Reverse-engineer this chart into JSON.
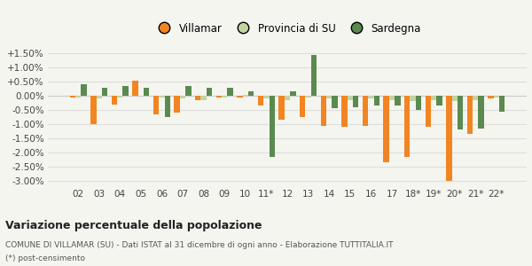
{
  "categories": [
    "02",
    "03",
    "04",
    "05",
    "06",
    "07",
    "08",
    "09",
    "10",
    "11*",
    "12",
    "13",
    "14",
    "15",
    "16",
    "17",
    "18*",
    "19*",
    "20*",
    "21*",
    "22*"
  ],
  "villamar": [
    -0.05,
    -1.0,
    -0.3,
    0.55,
    -0.65,
    -0.6,
    -0.15,
    -0.05,
    -0.05,
    -0.35,
    -0.85,
    -0.75,
    -1.05,
    -1.1,
    -1.05,
    -2.35,
    -2.15,
    -1.1,
    -3.0,
    -1.35,
    -0.1
  ],
  "provincia": [
    -0.05,
    -0.1,
    -0.05,
    0.0,
    -0.05,
    -0.1,
    -0.15,
    -0.05,
    0.05,
    -0.1,
    -0.15,
    -0.05,
    -0.1,
    -0.15,
    -0.1,
    -0.15,
    -0.2,
    -0.15,
    -0.2,
    -0.15,
    -0.05
  ],
  "sardegna": [
    0.4,
    0.3,
    0.35,
    0.3,
    -0.75,
    0.35,
    0.3,
    0.3,
    0.15,
    -2.15,
    0.15,
    1.45,
    -0.45,
    -0.4,
    -0.35,
    -0.35,
    -0.5,
    -0.35,
    -1.2,
    -1.15,
    -0.55
  ],
  "color_villamar": "#f28522",
  "color_provincia": "#c2d4a0",
  "color_sardegna": "#5a8a50",
  "bg_color": "#f5f5f0",
  "grid_color": "#dddddd",
  "title": "Variazione percentuale della popolazione",
  "caption1": "COMUNE DI VILLAMAR (SU) - Dati ISTAT al 31 dicembre di ogni anno - Elaborazione TUTTITALIA.IT",
  "caption2": "(*) post-censimento",
  "ylim": [
    -3.2,
    1.7
  ],
  "yticks": [
    -3.0,
    -2.5,
    -2.0,
    -1.5,
    -1.0,
    -0.5,
    0.0,
    0.5,
    1.0,
    1.5
  ]
}
